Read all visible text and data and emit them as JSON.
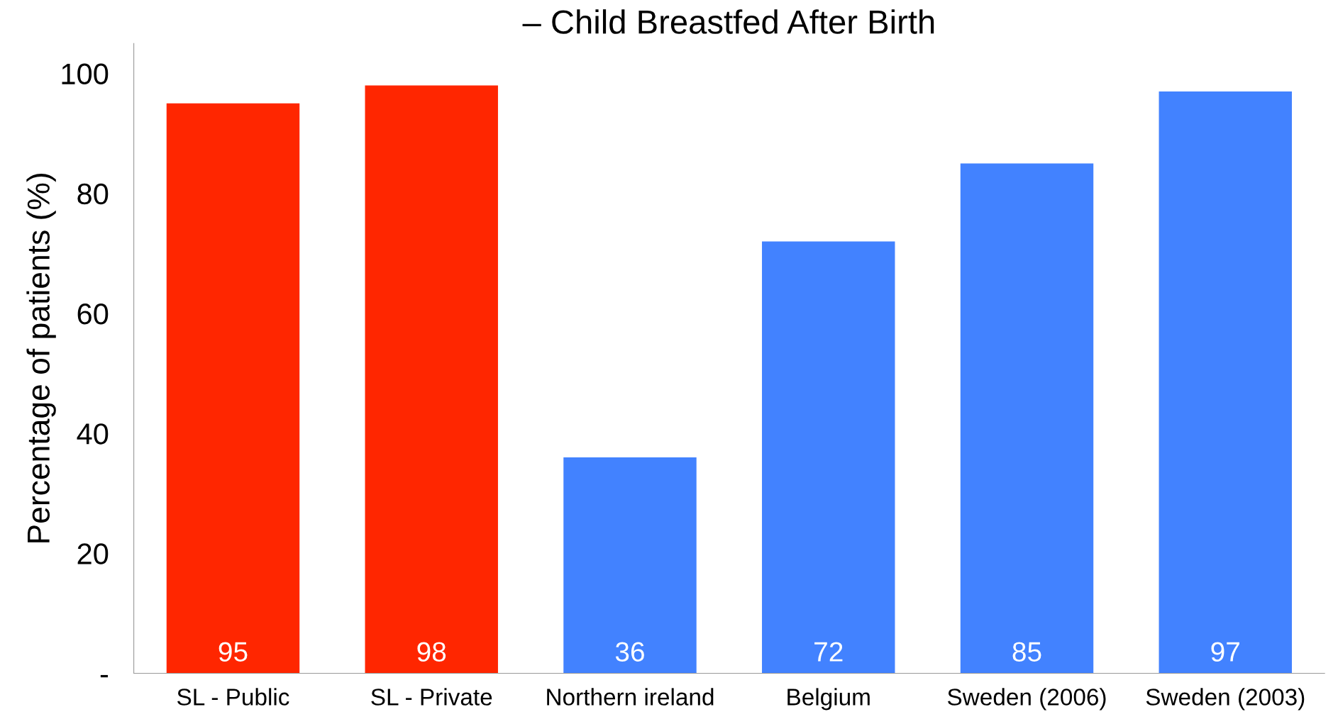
{
  "chart_data": {
    "type": "bar",
    "title": "– Child Breastfed After Birth",
    "ylabel": "Percentage of patients (%)",
    "categories": [
      "SL - Public",
      "SL - Private",
      "Northern ireland",
      "Belgium",
      "Sweden (2006)",
      "Sweden (2003)"
    ],
    "values": [
      95,
      98,
      36,
      72,
      85,
      97
    ],
    "colors": [
      "#ff2600",
      "#ff2600",
      "#4282ff",
      "#4282ff",
      "#4282ff",
      "#4282ff"
    ],
    "ylim": [
      0,
      105
    ],
    "yticks": [
      {
        "value": 0,
        "label": "-"
      },
      20,
      40,
      60,
      80,
      100
    ],
    "data_labels": true,
    "grid": false,
    "legend": false
  }
}
